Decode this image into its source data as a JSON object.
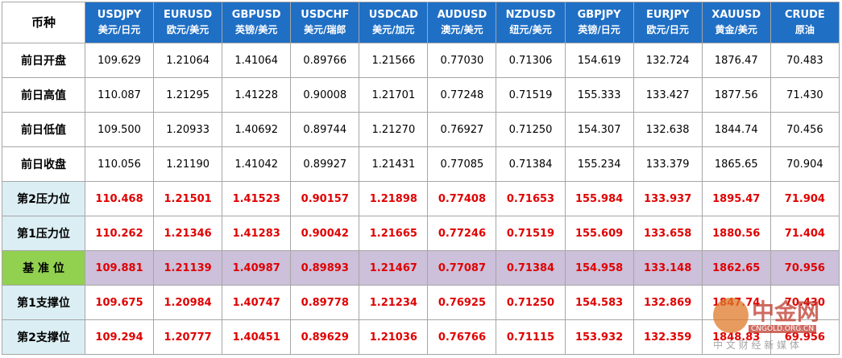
{
  "table": {
    "corner": "币种",
    "columns": [
      {
        "code": "USDJPY",
        "name": "美元/日元"
      },
      {
        "code": "EURUSD",
        "name": "欧元/美元"
      },
      {
        "code": "GBPUSD",
        "name": "英镑/美元"
      },
      {
        "code": "USDCHF",
        "name": "美元/瑞郎"
      },
      {
        "code": "USDCAD",
        "name": "美元/加元"
      },
      {
        "code": "AUDUSD",
        "name": "澳元/美元"
      },
      {
        "code": "NZDUSD",
        "name": "纽元/美元"
      },
      {
        "code": "GBPJPY",
        "name": "英镑/日元"
      },
      {
        "code": "EURJPY",
        "name": "欧元/日元"
      },
      {
        "code": "XAUUSD",
        "name": "黄金/美元"
      },
      {
        "code": "CRUDE",
        "name": "原油"
      }
    ],
    "rows": [
      {
        "label": "前日开盘",
        "values": [
          "109.629",
          "1.21064",
          "1.41064",
          "0.89766",
          "1.21566",
          "0.77030",
          "0.71306",
          "154.619",
          "132.724",
          "1876.47",
          "70.483"
        ]
      },
      {
        "label": "前日高值",
        "values": [
          "110.087",
          "1.21295",
          "1.41228",
          "0.90008",
          "1.21701",
          "0.77248",
          "0.71519",
          "155.333",
          "133.427",
          "1877.56",
          "71.430"
        ]
      },
      {
        "label": "前日低值",
        "values": [
          "109.500",
          "1.20933",
          "1.40692",
          "0.89744",
          "1.21270",
          "0.76927",
          "0.71250",
          "154.307",
          "132.638",
          "1844.74",
          "70.456"
        ]
      },
      {
        "label": "前日收盘",
        "values": [
          "110.056",
          "1.21190",
          "1.41042",
          "0.89927",
          "1.21431",
          "0.77085",
          "0.71384",
          "155.234",
          "133.379",
          "1865.65",
          "70.904"
        ]
      },
      {
        "label": "第2压力位",
        "values": [
          "110.468",
          "1.21501",
          "1.41523",
          "0.90157",
          "1.21898",
          "0.77408",
          "0.71653",
          "155.984",
          "133.937",
          "1895.47",
          "71.904"
        ]
      },
      {
        "label": "第1压力位",
        "values": [
          "110.262",
          "1.21346",
          "1.41283",
          "0.90042",
          "1.21665",
          "0.77246",
          "0.71519",
          "155.609",
          "133.658",
          "1880.56",
          "71.404"
        ]
      },
      {
        "label": "基 准 位",
        "values": [
          "109.881",
          "1.21139",
          "1.40987",
          "0.89893",
          "1.21467",
          "0.77087",
          "0.71384",
          "154.958",
          "133.148",
          "1862.65",
          "70.956"
        ]
      },
      {
        "label": "第1支撑位",
        "values": [
          "109.675",
          "1.20984",
          "1.40747",
          "0.89778",
          "1.21234",
          "0.76925",
          "0.71250",
          "154.583",
          "132.869",
          "1847.74",
          "70.430"
        ]
      },
      {
        "label": "第2支撑位",
        "values": [
          "109.294",
          "1.20777",
          "1.40451",
          "0.89629",
          "1.21036",
          "0.76766",
          "0.71115",
          "153.932",
          "132.359",
          "1848.83",
          "69.956"
        ]
      }
    ],
    "watermark": {
      "brand": "中金网",
      "domain": "CNGOLD.ORG.CN",
      "slogan": "中 文 财 经 新 媒 体"
    }
  }
}
